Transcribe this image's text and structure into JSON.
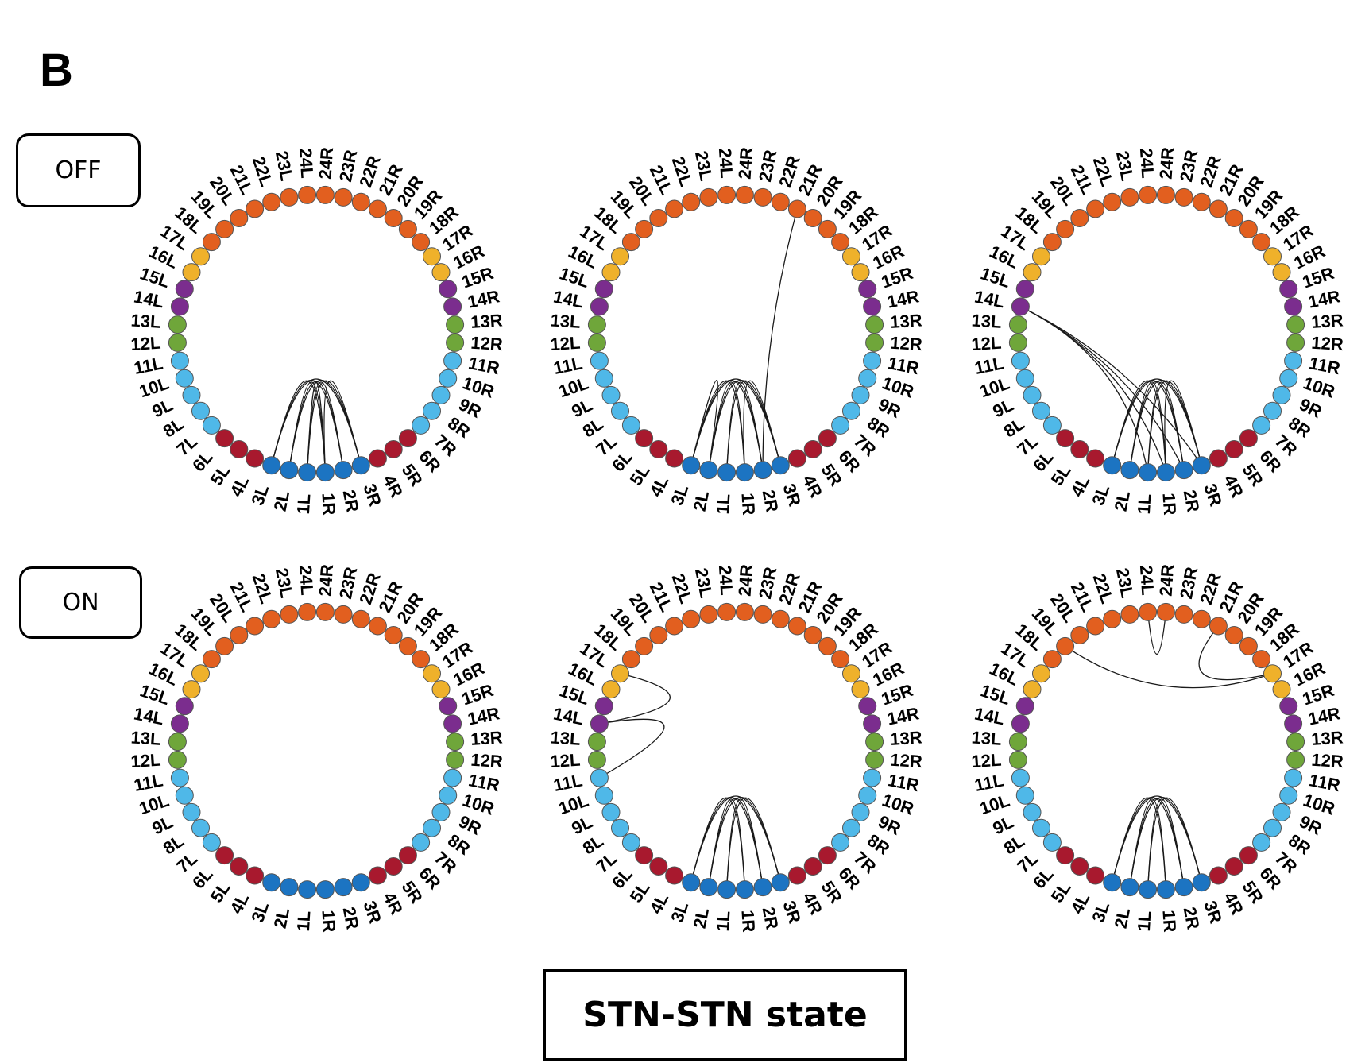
{
  "panel_letter": "B",
  "row_labels": [
    "OFF",
    "ON"
  ],
  "caption": "STN-STN state",
  "colors": {
    "orange": "#e25f1f",
    "yellow": "#efb12b",
    "purple": "#7b2d8e",
    "green": "#6fa63a",
    "lightblue": "#4fb8e8",
    "red": "#a8192e",
    "blue": "#1c74c2",
    "edge": "#1a1a1a",
    "outline": "#555555"
  },
  "node_groups": [
    {
      "contacts": [
        1,
        2,
        3
      ],
      "color": "blue"
    },
    {
      "contacts": [
        4,
        5,
        6
      ],
      "color": "red"
    },
    {
      "contacts": [
        7,
        8,
        9,
        10,
        11
      ],
      "color": "lightblue"
    },
    {
      "contacts": [
        12,
        13
      ],
      "color": "green"
    },
    {
      "contacts": [
        14,
        15
      ],
      "color": "purple"
    },
    {
      "contacts": [
        16,
        17
      ],
      "color": "yellow"
    },
    {
      "contacts": [
        18,
        19,
        20,
        21,
        22,
        23,
        24
      ],
      "color": "orange"
    }
  ],
  "node_labels": [
    "24L",
    "24R",
    "23R",
    "22R",
    "21R",
    "20R",
    "19R",
    "18R",
    "17R",
    "16R",
    "15R",
    "14R",
    "13R",
    "12R",
    "11R",
    "10R",
    "9R",
    "8R",
    "7R",
    "6R",
    "5R",
    "4R",
    "3R",
    "2R",
    "1R",
    "1L",
    "2L",
    "3L",
    "4L",
    "5L",
    "6L",
    "7L",
    "8L",
    "9L",
    "10L",
    "11L",
    "12L",
    "13L",
    "14L",
    "15L",
    "16L",
    "17L",
    "18L",
    "19L",
    "20L",
    "21L",
    "22L",
    "23L"
  ],
  "circles": [
    {
      "row": "OFF",
      "edges": [
        [
          "3L",
          "1R"
        ],
        [
          "3L",
          "2R"
        ],
        [
          "3L",
          "3R"
        ],
        [
          "2L",
          "1R"
        ],
        [
          "2L",
          "2R"
        ],
        [
          "2L",
          "3R"
        ],
        [
          "1L",
          "2R"
        ],
        [
          "1L",
          "3R"
        ],
        [
          "1L",
          "1R"
        ],
        [
          "1R",
          "3R"
        ]
      ]
    },
    {
      "row": "OFF",
      "edges": [
        [
          "3L",
          "1R"
        ],
        [
          "3L",
          "2R"
        ],
        [
          "3L",
          "3R"
        ],
        [
          "2L",
          "1R"
        ],
        [
          "2L",
          "2R"
        ],
        [
          "2L",
          "3R"
        ],
        [
          "1L",
          "2R"
        ],
        [
          "1L",
          "3R"
        ],
        [
          "1R",
          "3R"
        ],
        [
          "3L",
          "2L"
        ],
        [
          "2R",
          "21R"
        ]
      ]
    },
    {
      "row": "OFF",
      "edges": [
        [
          "3L",
          "1R"
        ],
        [
          "3L",
          "2R"
        ],
        [
          "3L",
          "3R"
        ],
        [
          "2L",
          "1R"
        ],
        [
          "2L",
          "2R"
        ],
        [
          "2L",
          "3R"
        ],
        [
          "1L",
          "2R"
        ],
        [
          "1L",
          "3R"
        ],
        [
          "1R",
          "3R"
        ],
        [
          "14L",
          "1L"
        ],
        [
          "14L",
          "1R"
        ],
        [
          "14L",
          "2R"
        ],
        [
          "14L",
          "3R"
        ]
      ]
    },
    {
      "row": "ON",
      "edges": []
    },
    {
      "row": "ON",
      "edges": [
        [
          "3L",
          "1R"
        ],
        [
          "3L",
          "2R"
        ],
        [
          "3L",
          "3R"
        ],
        [
          "2L",
          "1R"
        ],
        [
          "2L",
          "2R"
        ],
        [
          "2L",
          "3R"
        ],
        [
          "1L",
          "2R"
        ],
        [
          "1L",
          "3R"
        ],
        [
          "17L",
          "14L"
        ],
        [
          "14L",
          "11L"
        ]
      ]
    },
    {
      "row": "ON",
      "edges": [
        [
          "3L",
          "1R"
        ],
        [
          "3L",
          "2R"
        ],
        [
          "3L",
          "3R"
        ],
        [
          "2L",
          "1R"
        ],
        [
          "2L",
          "2R"
        ],
        [
          "2L",
          "3R"
        ],
        [
          "1L",
          "2R"
        ],
        [
          "1L",
          "3R"
        ],
        [
          "24L",
          "24R"
        ],
        [
          "19L",
          "17R"
        ],
        [
          "21R",
          "17R"
        ]
      ]
    }
  ]
}
